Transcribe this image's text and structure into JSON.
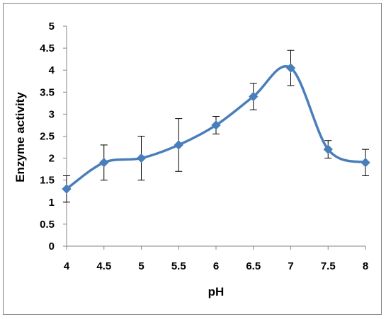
{
  "chart_data": {
    "type": "line",
    "title": "",
    "xlabel": "pH",
    "ylabel": "Enzyme activity",
    "xlim": [
      4,
      8
    ],
    "ylim": [
      0,
      5
    ],
    "x_ticks": [
      "4",
      "4.5",
      "5",
      "5.5",
      "6",
      "6.5",
      "7",
      "7.5",
      "8"
    ],
    "y_ticks": [
      "0",
      "0.5",
      "1",
      "1.5",
      "2",
      "2.5",
      "3",
      "3.5",
      "4",
      "4.5",
      "5"
    ],
    "grid": false,
    "legend": "none",
    "smoothed": true,
    "marker": "diamond",
    "color": "#4a7ebb",
    "series": [
      {
        "x": [
          4,
          4.5,
          5,
          5.5,
          6,
          6.5,
          7,
          7.5,
          8
        ],
        "y": [
          1.3,
          1.9,
          2.0,
          2.3,
          2.75,
          3.4,
          4.05,
          2.2,
          1.9
        ],
        "error": [
          0.3,
          0.4,
          0.5,
          0.6,
          0.2,
          0.3,
          0.4,
          0.2,
          0.3
        ]
      }
    ]
  }
}
